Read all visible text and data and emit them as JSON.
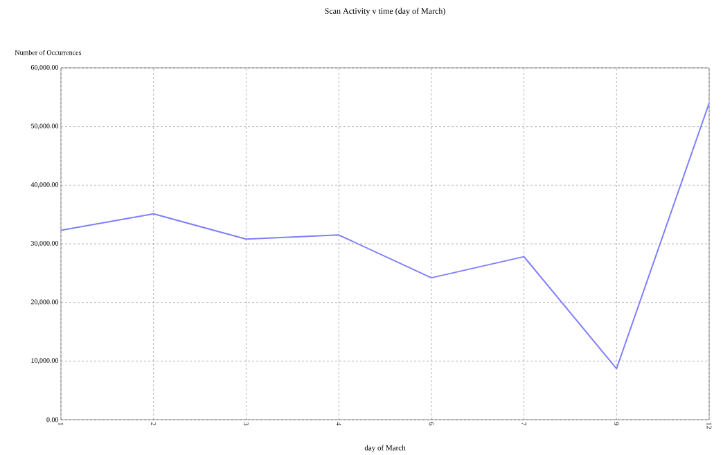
{
  "chart_data": {
    "type": "line",
    "title": "Scan Activity v time (day of March)",
    "xlabel": "day of March",
    "ylabel": "Number of Occurrences",
    "categories": [
      "1",
      "2",
      "3",
      "4",
      "6",
      "7",
      "9",
      "12"
    ],
    "series": [
      {
        "color": "#7f7fff",
        "values": [
          32300,
          35100,
          30800,
          31500,
          24200,
          27800,
          8700,
          54000
        ]
      }
    ],
    "ylim": [
      0,
      60000
    ],
    "yticks": [
      {
        "value": 0,
        "label": "0.00"
      },
      {
        "value": 10000,
        "label": "10,000.00"
      },
      {
        "value": 20000,
        "label": "20,000.00"
      },
      {
        "value": 30000,
        "label": "30,000.00"
      },
      {
        "value": 40000,
        "label": "40,000.00"
      },
      {
        "value": 50000,
        "label": "50,000.00"
      },
      {
        "value": 60000,
        "label": "60,000.00"
      }
    ],
    "grid": true,
    "marker": "none",
    "line_style": "solid"
  }
}
